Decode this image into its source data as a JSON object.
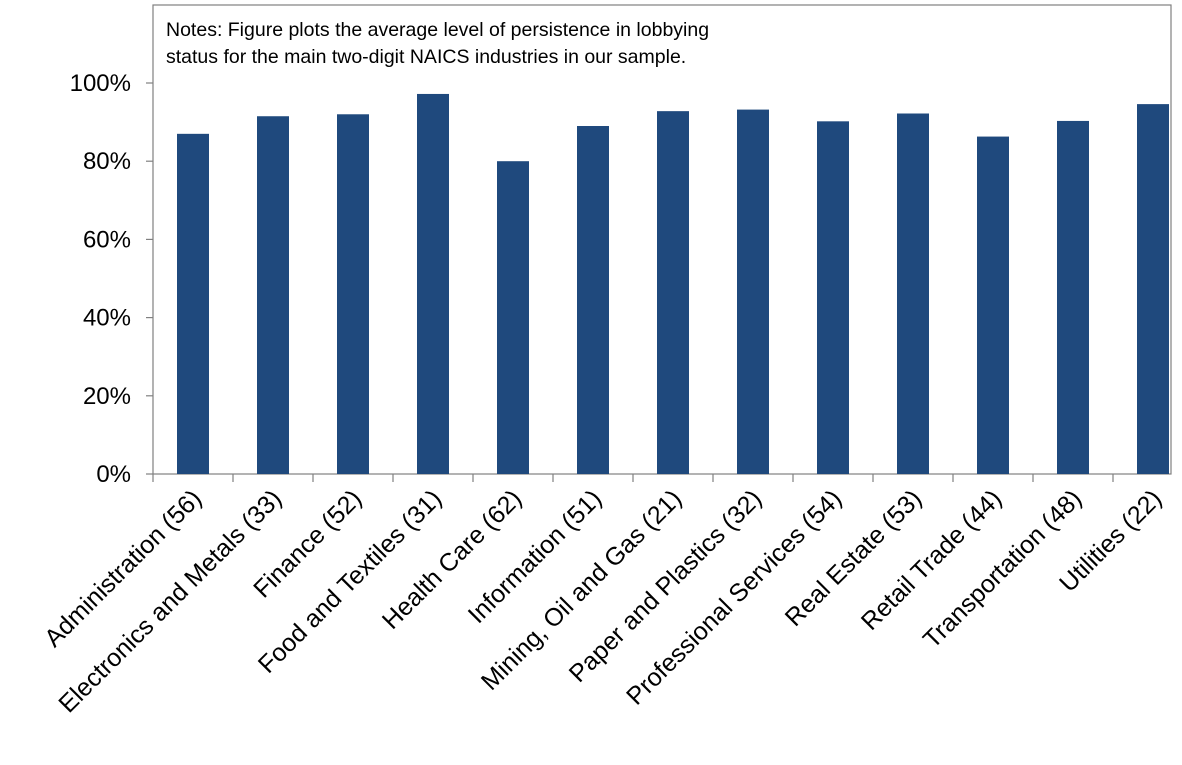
{
  "chart_data": {
    "type": "bar",
    "title": "",
    "xlabel": "",
    "ylabel": "",
    "annotation": [
      "Notes: Figure plots the average level of persistence in lobbying",
      "status for the main two-digit NAICS industries in our sample."
    ],
    "categories": [
      "Administration (56)",
      "Electronics and Metals (33)",
      "Finance (52)",
      "Food and Textiles (31)",
      "Health Care (62)",
      "Information (51)",
      "Mining, Oil and Gas (21)",
      "Paper and Plastics (32)",
      "Professional Services (54)",
      "Real Estate (53)",
      "Retail Trade (44)",
      "Transportation (48)",
      "Utilities (22)"
    ],
    "values": [
      0.87,
      0.915,
      0.92,
      0.972,
      0.8,
      0.89,
      0.928,
      0.932,
      0.902,
      0.922,
      0.863,
      0.903,
      0.946
    ],
    "ylim": [
      0,
      1.0
    ],
    "yticks": [
      0,
      0.2,
      0.4,
      0.6,
      0.8,
      1.0
    ],
    "ytick_labels": [
      "0%",
      "20%",
      "40%",
      "60%",
      "80%",
      "100%"
    ],
    "bar_color": "#1f497d",
    "axis_color": "#808080",
    "grid": false,
    "legend": "none"
  }
}
